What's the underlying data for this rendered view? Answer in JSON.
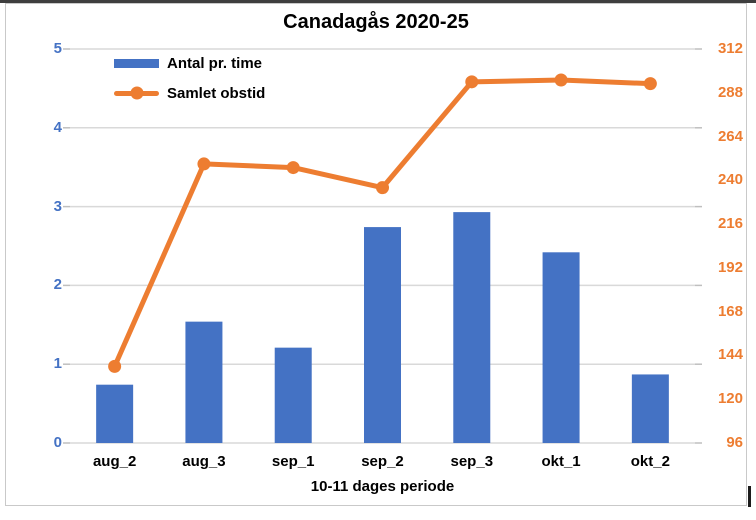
{
  "frame": {
    "top_edge_color": "#3e3e3e",
    "border_color": "#c9c9c9",
    "background": "#ffffff"
  },
  "chart_data": {
    "type": "combo",
    "title": "Canadagås 2020-25",
    "xlabel": "10-11 dages periode",
    "categories": [
      "aug_2",
      "aug_3",
      "sep_1",
      "sep_2",
      "sep_3",
      "okt_1",
      "okt_2"
    ],
    "series": [
      {
        "name": "Antal pr. time",
        "type": "bar",
        "axis": "left",
        "color": "#4472C4",
        "values": [
          0.74,
          1.54,
          1.21,
          2.74,
          2.93,
          2.42,
          0.87
        ]
      },
      {
        "name": "Samlet obstid",
        "type": "line",
        "axis": "right",
        "color": "#ED7D31",
        "values": [
          138,
          249,
          247,
          236,
          294,
          295,
          293
        ]
      }
    ],
    "left_axis": {
      "min": 0,
      "max": 5,
      "step": 1,
      "ticks": [
        5,
        4,
        3,
        2,
        1,
        0
      ],
      "color": "#4472C4"
    },
    "right_axis": {
      "min": 96,
      "max": 312,
      "step": 24,
      "ticks": [
        312,
        288,
        264,
        240,
        216,
        192,
        168,
        144,
        120,
        96
      ],
      "color": "#ED7D31"
    },
    "grid": true,
    "gridline_color": "#D9D9D9",
    "tick_color": "#BFBFBF",
    "legend_position": "top-left-inside"
  }
}
